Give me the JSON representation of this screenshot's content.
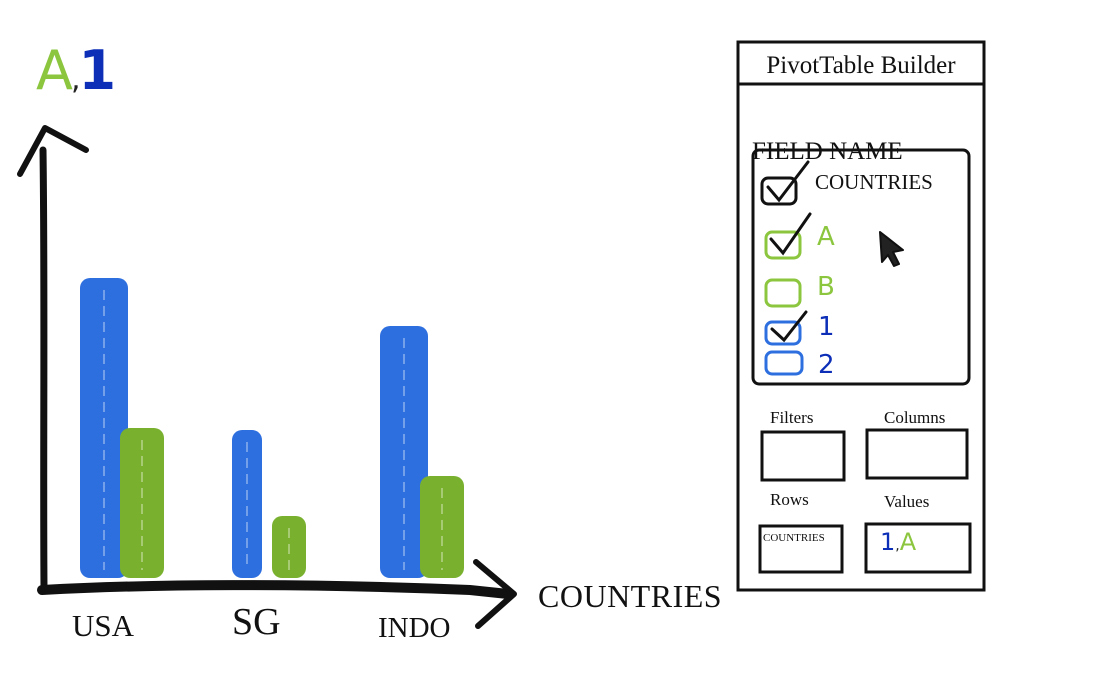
{
  "chart_data": {
    "type": "bar",
    "categories": [
      "USA",
      "SG",
      "INDO"
    ],
    "series": [
      {
        "name": "1",
        "values": [
          300,
          148,
          252
        ],
        "color": "#2e6fe0"
      },
      {
        "name": "A",
        "values": [
          150,
          62,
          102
        ],
        "color": "#79b12f"
      }
    ],
    "ylabel": {
      "part_a": "A",
      "sep": ",",
      "part_1": "1"
    },
    "xlabel": "COUNTRIES",
    "ylim": [
      0,
      430
    ],
    "grid": false,
    "legend": "none"
  },
  "pivot": {
    "title": "PivotTable Builder",
    "field_name_label": "FIELD NAME",
    "fields": [
      {
        "label": "COUNTRIES",
        "checked": true
      },
      {
        "label": "A",
        "checked": true,
        "color": "#8cc63f"
      },
      {
        "label": "B",
        "checked": false,
        "color": "#8cc63f"
      },
      {
        "label": "1",
        "checked": true,
        "color": "#0d2fb8"
      },
      {
        "label": "2",
        "checked": false,
        "color": "#0d2fb8"
      }
    ],
    "zones": {
      "filters": {
        "label": "Filters"
      },
      "columns": {
        "label": "Columns"
      },
      "rows": {
        "label": "Rows",
        "value": "COUNTRIES"
      },
      "values": {
        "label": "Values",
        "part_1": "1",
        "sep": ",",
        "part_a": "A"
      }
    },
    "cursor_icon": "mouse-pointer-icon"
  }
}
